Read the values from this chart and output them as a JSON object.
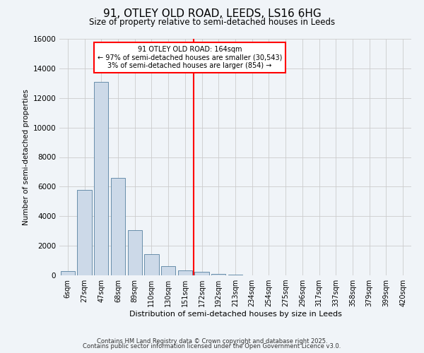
{
  "title": "91, OTLEY OLD ROAD, LEEDS, LS16 6HG",
  "subtitle": "Size of property relative to semi-detached houses in Leeds",
  "xlabel": "Distribution of semi-detached houses by size in Leeds",
  "ylabel": "Number of semi-detached properties",
  "bar_labels": [
    "6sqm",
    "27sqm",
    "47sqm",
    "68sqm",
    "89sqm",
    "110sqm",
    "130sqm",
    "151sqm",
    "172sqm",
    "192sqm",
    "213sqm",
    "234sqm",
    "254sqm",
    "275sqm",
    "296sqm",
    "317sqm",
    "337sqm",
    "358sqm",
    "379sqm",
    "399sqm",
    "420sqm"
  ],
  "bar_values": [
    300,
    5800,
    13100,
    6600,
    3050,
    1450,
    600,
    350,
    250,
    100,
    50,
    0,
    0,
    0,
    0,
    0,
    0,
    0,
    0,
    0,
    0
  ],
  "bar_color": "#ccd9e8",
  "bar_edge_color": "#5580a0",
  "vline_x_index": 7.5,
  "vline_color": "red",
  "annotation_title": "91 OTLEY OLD ROAD: 164sqm",
  "annotation_line1": "← 97% of semi-detached houses are smaller (30,543)",
  "annotation_line2": "3% of semi-detached houses are larger (854) →",
  "annotation_box_color": "white",
  "annotation_box_edge": "red",
  "ylim": [
    0,
    16000
  ],
  "yticks": [
    0,
    2000,
    4000,
    6000,
    8000,
    10000,
    12000,
    14000,
    16000
  ],
  "grid_color": "#cccccc",
  "background_color": "#f0f4f8",
  "footer1": "Contains HM Land Registry data © Crown copyright and database right 2025.",
  "footer2": "Contains public sector information licensed under the Open Government Licence v3.0."
}
